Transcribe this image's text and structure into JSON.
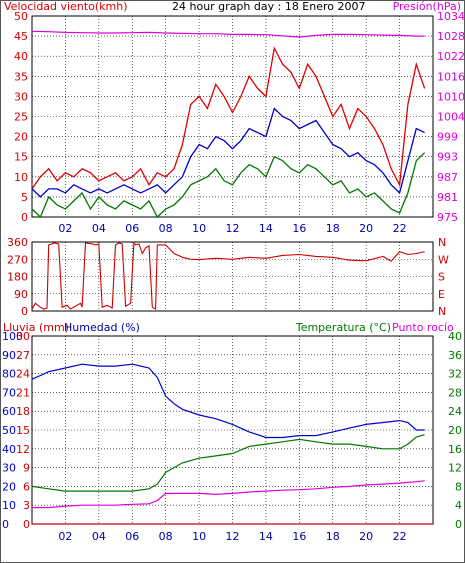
{
  "colors": {
    "wind": "#dd0000",
    "wind_avg": "#0000cc",
    "wind_base": "#007700",
    "pressure": "#dd00dd",
    "direction": "#cc0000",
    "rain": "#cc0000",
    "humidity": "#0000cc",
    "temperature": "#007700",
    "dewpoint": "#dd00dd",
    "label_blue": "#0000aa",
    "label_green": "#007700"
  },
  "chart_data": [
    {
      "type": "line",
      "title": "24 hour graph day : 18 Enero 2007",
      "ylabel_left": "Velocidad viento(kmh)",
      "ylabel_right": "Presión(hPa)",
      "x_ticks": [
        "02",
        "04",
        "06",
        "08",
        "10",
        "12",
        "14",
        "16",
        "18",
        "20",
        "22"
      ],
      "y_left_ticks": [
        "0",
        "5",
        "10",
        "15",
        "20",
        "25",
        "30",
        "35",
        "40",
        "45",
        "50"
      ],
      "y_right_ticks": [
        "975",
        "981",
        "987",
        "993",
        "999",
        "1004",
        "1010",
        "1016",
        "1022",
        "1028",
        "1034"
      ],
      "ylim_left": [
        0,
        50
      ],
      "ylim_right": [
        975,
        1034
      ],
      "xlim": [
        0,
        24
      ],
      "grid": true,
      "series": [
        {
          "key": "wind_gust",
          "axis": "left",
          "x": [
            0,
            0.5,
            1,
            1.5,
            2,
            2.5,
            3,
            3.5,
            4,
            4.5,
            5,
            5.5,
            6,
            6.5,
            7,
            7.5,
            8,
            8.5,
            9,
            9.5,
            10,
            10.5,
            11,
            11.5,
            12,
            12.5,
            13,
            13.5,
            14,
            14.5,
            15,
            15.5,
            16,
            16.5,
            17,
            17.5,
            18,
            18.5,
            19,
            19.5,
            20,
            20.5,
            21,
            21.5,
            22,
            22.5,
            23,
            23.5
          ],
          "values": [
            7,
            10,
            12,
            9,
            11,
            10,
            12,
            11,
            9,
            10,
            11,
            9,
            10,
            12,
            8,
            11,
            10,
            12,
            18,
            28,
            30,
            27,
            33,
            30,
            26,
            30,
            35,
            32,
            30,
            42,
            38,
            36,
            32,
            38,
            35,
            30,
            25,
            28,
            22,
            27,
            25,
            22,
            18,
            12,
            8,
            28,
            38,
            32
          ]
        },
        {
          "key": "wind_avg",
          "axis": "left",
          "x": [
            0,
            0.5,
            1,
            1.5,
            2,
            2.5,
            3,
            3.5,
            4,
            4.5,
            5,
            5.5,
            6,
            6.5,
            7,
            7.5,
            8,
            8.5,
            9,
            9.5,
            10,
            10.5,
            11,
            11.5,
            12,
            12.5,
            13,
            13.5,
            14,
            14.5,
            15,
            15.5,
            16,
            16.5,
            17,
            17.5,
            18,
            18.5,
            19,
            19.5,
            20,
            20.5,
            21,
            21.5,
            22,
            22.5,
            23,
            23.5
          ],
          "values": [
            7,
            5,
            7,
            7,
            6,
            8,
            7,
            6,
            7,
            6,
            7,
            8,
            7,
            6,
            7,
            8,
            6,
            8,
            10,
            15,
            18,
            17,
            20,
            19,
            17,
            19,
            22,
            21,
            20,
            27,
            25,
            24,
            22,
            23,
            24,
            21,
            18,
            17,
            15,
            16,
            14,
            13,
            11,
            8,
            6,
            14,
            22,
            21
          ]
        },
        {
          "key": "wind_base",
          "axis": "left",
          "x": [
            0,
            0.5,
            1,
            1.5,
            2,
            2.5,
            3,
            3.5,
            4,
            4.5,
            5,
            5.5,
            6,
            6.5,
            7,
            7.5,
            8,
            8.5,
            9,
            9.5,
            10,
            10.5,
            11,
            11.5,
            12,
            12.5,
            13,
            13.5,
            14,
            14.5,
            15,
            15.5,
            16,
            16.5,
            17,
            17.5,
            18,
            18.5,
            19,
            19.5,
            20,
            20.5,
            21,
            21.5,
            22,
            22.5,
            23,
            23.5
          ],
          "values": [
            2,
            0,
            5,
            3,
            2,
            4,
            6,
            2,
            5,
            3,
            2,
            4,
            3,
            2,
            4,
            0,
            2,
            3,
            5,
            8,
            9,
            10,
            12,
            9,
            8,
            11,
            13,
            12,
            10,
            15,
            14,
            12,
            11,
            13,
            12,
            10,
            8,
            9,
            6,
            7,
            5,
            6,
            4,
            2,
            1,
            6,
            14,
            16
          ]
        },
        {
          "key": "pressure",
          "axis": "right",
          "x": [
            0,
            1,
            2,
            3,
            4,
            5,
            6,
            7,
            8,
            9,
            10,
            11,
            12,
            13,
            14,
            15,
            16,
            17,
            18,
            19,
            20,
            21,
            22,
            23,
            23.5
          ],
          "values": [
            1029.5,
            1029.4,
            1029.2,
            1029.1,
            1029.0,
            1029.0,
            1029.1,
            1029.2,
            1029.0,
            1028.9,
            1028.8,
            1028.8,
            1028.6,
            1028.6,
            1028.5,
            1028.2,
            1027.8,
            1028.3,
            1028.6,
            1028.6,
            1028.5,
            1028.4,
            1028.3,
            1028.1,
            1028.1
          ]
        }
      ]
    },
    {
      "type": "line",
      "ylabel_right_letters": [
        "N",
        "W",
        "S",
        "E",
        "N"
      ],
      "y_left_ticks": [
        "0",
        "90",
        "180",
        "270",
        "360"
      ],
      "ylim": [
        0,
        360
      ],
      "xlim": [
        0,
        24
      ],
      "grid": true,
      "series": [
        {
          "key": "wind_dir",
          "x": [
            0,
            0.2,
            0.5,
            0.7,
            0.9,
            1.0,
            1.2,
            1.3,
            1.6,
            1.8,
            2.1,
            2.3,
            2.6,
            2.9,
            3.0,
            3.2,
            3.6,
            3.8,
            4.0,
            4.2,
            4.5,
            4.8,
            5.0,
            5.2,
            5.4,
            5.6,
            5.9,
            6.1,
            6.2,
            6.4,
            6.6,
            6.8,
            7.0,
            7.2,
            7.4,
            7.5,
            8.0,
            8.5,
            9.0,
            9.5,
            10,
            11,
            12,
            13,
            14,
            15,
            16,
            17,
            18,
            19,
            20,
            21,
            21.5,
            22,
            22.5,
            23,
            23.5
          ],
          "values": [
            10,
            40,
            20,
            10,
            15,
            345,
            350,
            355,
            350,
            20,
            30,
            10,
            25,
            40,
            20,
            355,
            350,
            345,
            350,
            20,
            30,
            15,
            345,
            355,
            350,
            25,
            40,
            355,
            345,
            350,
            300,
            330,
            340,
            20,
            10,
            345,
            345,
            300,
            280,
            270,
            268,
            275,
            270,
            280,
            275,
            290,
            295,
            285,
            280,
            265,
            262,
            285,
            260,
            310,
            295,
            300,
            310
          ]
        }
      ]
    },
    {
      "type": "line",
      "ylabel_left": "Lluvia (mm)",
      "ylabel_humidity": "Humedad (%)",
      "ylabel_right": "Temperatura (°C)",
      "ylabel_dew": "Punto rocío",
      "x_ticks": [
        "02",
        "04",
        "06",
        "08",
        "10",
        "12",
        "14",
        "16",
        "18",
        "20",
        "22"
      ],
      "y_humidity_ticks": [
        "0",
        "10",
        "20",
        "30",
        "40",
        "50",
        "60",
        "70",
        "80",
        "90",
        "100"
      ],
      "y_rain_ticks": [
        "0",
        "3",
        "6",
        "9",
        "12",
        "15",
        "18",
        "21",
        "24",
        "27",
        "30"
      ],
      "y_temp_ticks": [
        "0",
        "4",
        "8",
        "12",
        "16",
        "20",
        "24",
        "28",
        "32",
        "36",
        "40"
      ],
      "ylim_humidity": [
        0,
        100
      ],
      "ylim_temp": [
        0,
        40
      ],
      "xlim": [
        0,
        24
      ],
      "grid": true,
      "series": [
        {
          "key": "humidity",
          "axis": "humidity",
          "x": [
            0,
            0.5,
            1,
            2,
            3,
            4,
            5,
            6,
            6.5,
            7,
            7.5,
            8,
            8.5,
            9,
            10,
            11,
            12,
            13,
            14,
            15,
            16,
            17,
            18,
            19,
            20,
            21,
            22,
            22.5,
            23,
            23.5
          ],
          "values": [
            77,
            79,
            81,
            83,
            85,
            84,
            84,
            85,
            84,
            83,
            78,
            68,
            64,
            61,
            58,
            56,
            53,
            49,
            46,
            46,
            47,
            47,
            49,
            51,
            53,
            54,
            55,
            54,
            50,
            50
          ]
        },
        {
          "key": "temperature",
          "axis": "temp",
          "x": [
            0,
            1,
            2,
            3,
            4,
            5,
            6,
            7,
            7.5,
            8,
            8.5,
            9,
            10,
            11,
            12,
            13,
            14,
            15,
            16,
            17,
            18,
            19,
            20,
            21,
            22,
            22.5,
            23,
            23.5
          ],
          "values": [
            8,
            7.5,
            7,
            7,
            7,
            7,
            7,
            7.5,
            8.5,
            11,
            12,
            13,
            14,
            14.5,
            15,
            16.5,
            17,
            17.5,
            18,
            17.5,
            17,
            17,
            16.5,
            16,
            16,
            17,
            18.5,
            19
          ]
        },
        {
          "key": "dewpoint",
          "axis": "temp",
          "x": [
            0,
            1,
            2,
            3,
            4,
            5,
            6,
            7,
            7.5,
            8,
            9,
            10,
            11,
            12,
            13,
            14,
            15,
            16,
            17,
            18,
            19,
            20,
            21,
            22,
            23,
            23.5
          ],
          "values": [
            3.5,
            3.5,
            3.8,
            4,
            4,
            4,
            4.2,
            4.3,
            5,
            6.5,
            6.5,
            6.5,
            6.3,
            6.5,
            6.8,
            7,
            7.2,
            7.3,
            7.5,
            7.8,
            8,
            8.3,
            8.5,
            8.7,
            9,
            9.2
          ]
        },
        {
          "key": "rain",
          "axis": "rain",
          "x": [
            0,
            24
          ],
          "values": [
            0,
            0
          ]
        }
      ]
    }
  ]
}
